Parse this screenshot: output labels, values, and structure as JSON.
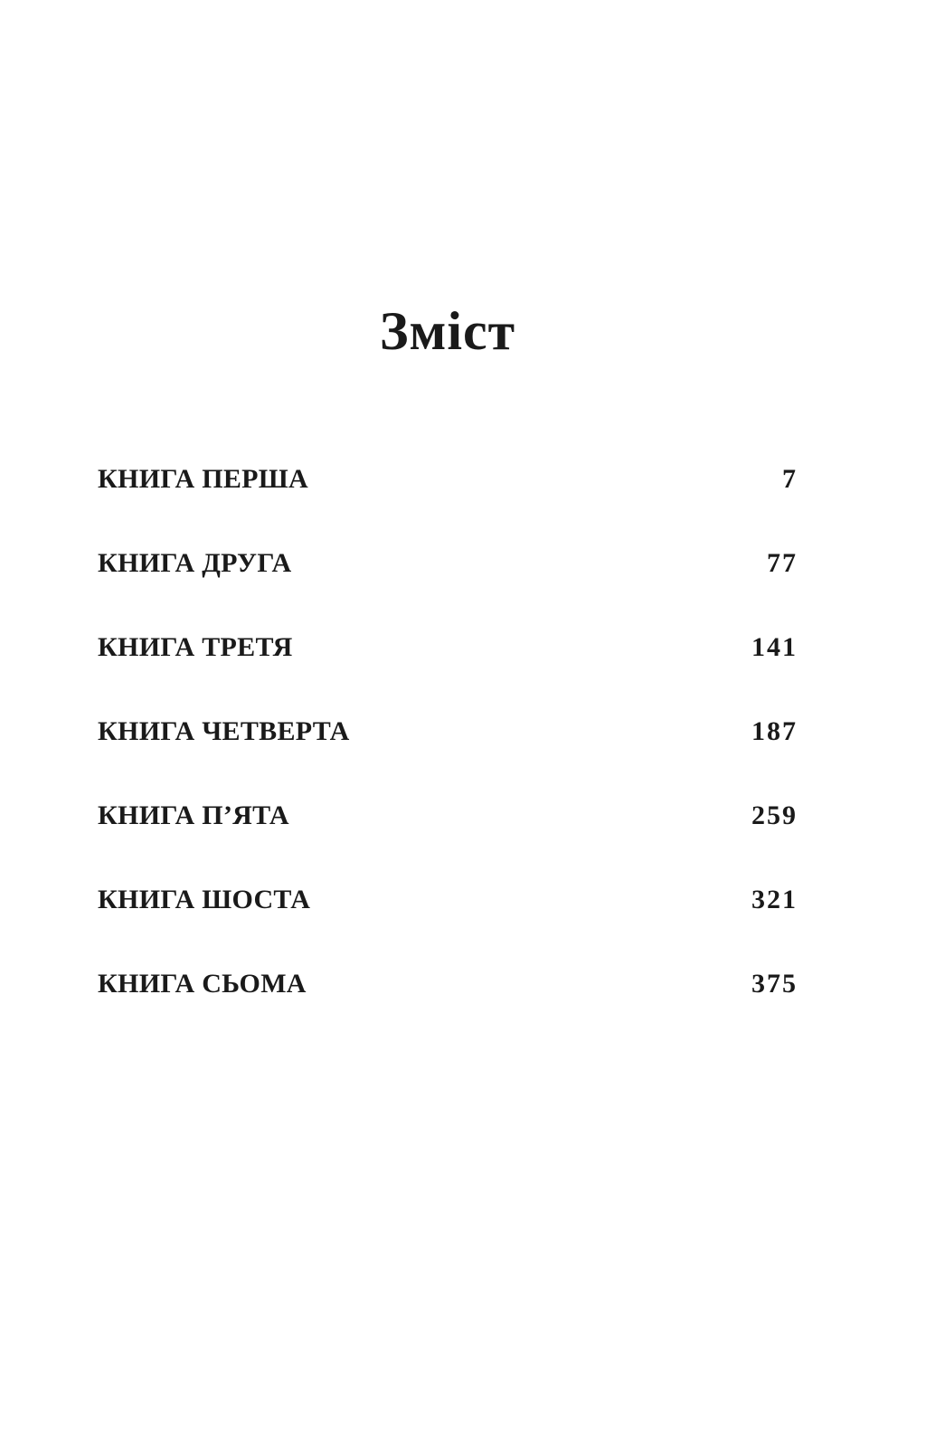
{
  "title": "Зміст",
  "entries": [
    {
      "label": "КНИГА ПЕРША",
      "page": "7"
    },
    {
      "label": "КНИГА ДРУГА",
      "page": "77"
    },
    {
      "label": "КНИГА ТРЕТЯ",
      "page": "141"
    },
    {
      "label": "КНИГА ЧЕТВЕРТА",
      "page": "187"
    },
    {
      "label": "КНИГА П’ЯТА",
      "page": "259"
    },
    {
      "label": "КНИГА ШОСТА",
      "page": "321"
    },
    {
      "label": "КНИГА СЬОМА",
      "page": "375"
    }
  ]
}
